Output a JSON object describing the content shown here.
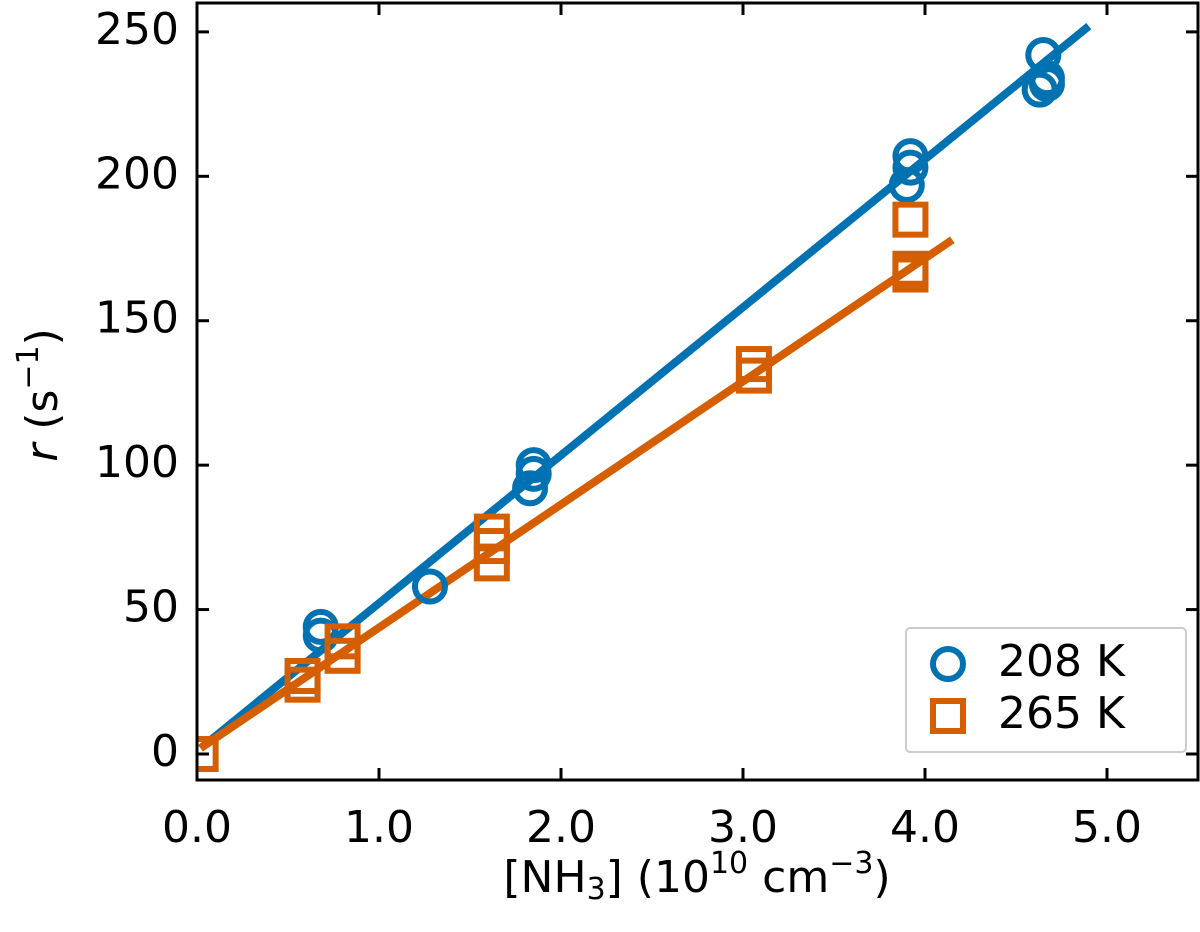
{
  "chart_data": {
    "type": "scatter",
    "xlabel": [
      "[NH",
      "3",
      "] (10",
      "10",
      " cm",
      "−3",
      ")"
    ],
    "ylabel": [
      "r",
      " (s",
      "−1",
      ")"
    ],
    "xlim": [
      0,
      5.5
    ],
    "ylim": [
      -9,
      260
    ],
    "xticks": [
      {
        "value": 0,
        "label": "0.0"
      },
      {
        "value": 1,
        "label": "1.0"
      },
      {
        "value": 2,
        "label": "2.0"
      },
      {
        "value": 3,
        "label": "3.0"
      },
      {
        "value": 4,
        "label": "4.0"
      },
      {
        "value": 5,
        "label": "5.0"
      }
    ],
    "yticks": [
      0,
      50,
      100,
      150,
      200,
      250
    ],
    "legend": "lower right",
    "series": [
      {
        "name": "208 K",
        "color": "#0072b2",
        "marker": "circle",
        "x": [
          0.68,
          0.68,
          1.28,
          1.85,
          1.85,
          1.83,
          3.92,
          3.92,
          3.9,
          4.65,
          4.67,
          4.67,
          4.63
        ],
        "values": [
          44,
          41,
          58,
          100,
          97,
          92,
          207,
          203,
          197,
          242,
          234,
          232,
          230
        ]
      },
      {
        "name": "265 K",
        "color": "#d55e00",
        "marker": "square",
        "x": [
          0.02,
          0.58,
          0.58,
          0.8,
          0.8,
          1.62,
          1.62,
          1.62,
          3.06,
          3.06,
          3.92,
          3.92,
          3.92
        ],
        "values": [
          0,
          24,
          27,
          39,
          34,
          77,
          72,
          66,
          135,
          131,
          185,
          168,
          166
        ]
      }
    ],
    "fits": [
      {
        "color": "#0072b2",
        "x": [
          0.02,
          4.9
        ],
        "values": [
          2,
          252
        ]
      },
      {
        "color": "#d55e00",
        "x": [
          0.02,
          4.15
        ],
        "values": [
          2,
          178
        ]
      }
    ]
  }
}
